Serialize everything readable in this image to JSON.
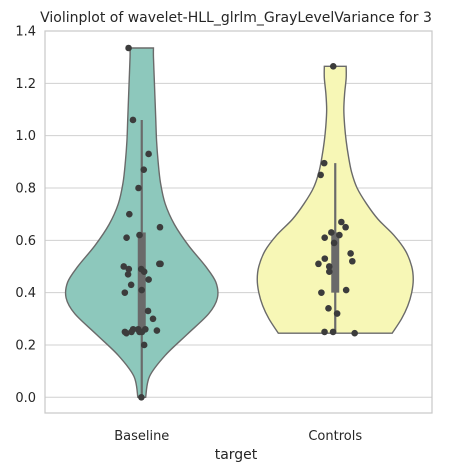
{
  "chart_data": {
    "type": "violin",
    "title": "Violinplot of wavelet-HLL_glrlm_GrayLevelVariance for 3",
    "xlabel": "target",
    "ylabel": "",
    "categories": [
      "Baseline",
      "Controls"
    ],
    "ylim": [
      -0.06,
      1.4
    ],
    "yticks": [
      0.0,
      0.2,
      0.4,
      0.6,
      0.8,
      1.0,
      1.2,
      1.4
    ],
    "ytick_labels": [
      "0.0",
      "0.2",
      "0.4",
      "0.6",
      "0.8",
      "1.0",
      "1.2",
      "1.4"
    ],
    "grid": true,
    "legend": "none",
    "series": [
      {
        "category": "Baseline",
        "color": "#8dc8bc",
        "density_profile": [
          [
            0.0,
            0.05
          ],
          [
            0.08,
            0.1
          ],
          [
            0.16,
            0.3
          ],
          [
            0.24,
            0.58
          ],
          [
            0.32,
            0.86
          ],
          [
            0.38,
            0.97
          ],
          [
            0.44,
            0.95
          ],
          [
            0.5,
            0.82
          ],
          [
            0.58,
            0.6
          ],
          [
            0.66,
            0.42
          ],
          [
            0.74,
            0.3
          ],
          [
            0.82,
            0.24
          ],
          [
            0.9,
            0.21
          ],
          [
            0.98,
            0.19
          ],
          [
            1.06,
            0.18
          ],
          [
            1.14,
            0.17
          ],
          [
            1.22,
            0.16
          ],
          [
            1.3,
            0.15
          ],
          [
            1.335,
            0.15
          ]
        ],
        "box": {
          "q1": 0.25,
          "median": 0.46,
          "q3": 0.63,
          "whisker_low": 0.0,
          "whisker_high": 1.06
        },
        "points": [
          0.0,
          0.2,
          0.245,
          0.25,
          0.25,
          0.25,
          0.25,
          0.255,
          0.26,
          0.26,
          0.26,
          0.3,
          0.33,
          0.4,
          0.41,
          0.43,
          0.45,
          0.47,
          0.48,
          0.49,
          0.49,
          0.5,
          0.51,
          0.51,
          0.61,
          0.62,
          0.65,
          0.7,
          0.8,
          0.87,
          0.93,
          1.06,
          1.335
        ]
      },
      {
        "category": "Controls",
        "color": "#f7f7b6",
        "density_profile": [
          [
            0.245,
            0.73
          ],
          [
            0.3,
            0.85
          ],
          [
            0.35,
            0.93
          ],
          [
            0.4,
            0.98
          ],
          [
            0.45,
            1.0
          ],
          [
            0.5,
            0.98
          ],
          [
            0.56,
            0.9
          ],
          [
            0.62,
            0.75
          ],
          [
            0.68,
            0.55
          ],
          [
            0.74,
            0.4
          ],
          [
            0.8,
            0.28
          ],
          [
            0.86,
            0.21
          ],
          [
            0.92,
            0.17
          ],
          [
            0.98,
            0.14
          ],
          [
            1.04,
            0.12
          ],
          [
            1.1,
            0.11
          ],
          [
            1.16,
            0.12
          ],
          [
            1.22,
            0.14
          ],
          [
            1.265,
            0.14
          ]
        ],
        "box": {
          "q1": 0.4,
          "median": 0.52,
          "q3": 0.63,
          "whisker_low": 0.245,
          "whisker_high": 0.895
        },
        "points": [
          0.245,
          0.25,
          0.25,
          0.32,
          0.34,
          0.4,
          0.41,
          0.48,
          0.5,
          0.51,
          0.52,
          0.53,
          0.55,
          0.59,
          0.61,
          0.62,
          0.63,
          0.65,
          0.67,
          0.85,
          0.895,
          1.265
        ]
      }
    ]
  }
}
